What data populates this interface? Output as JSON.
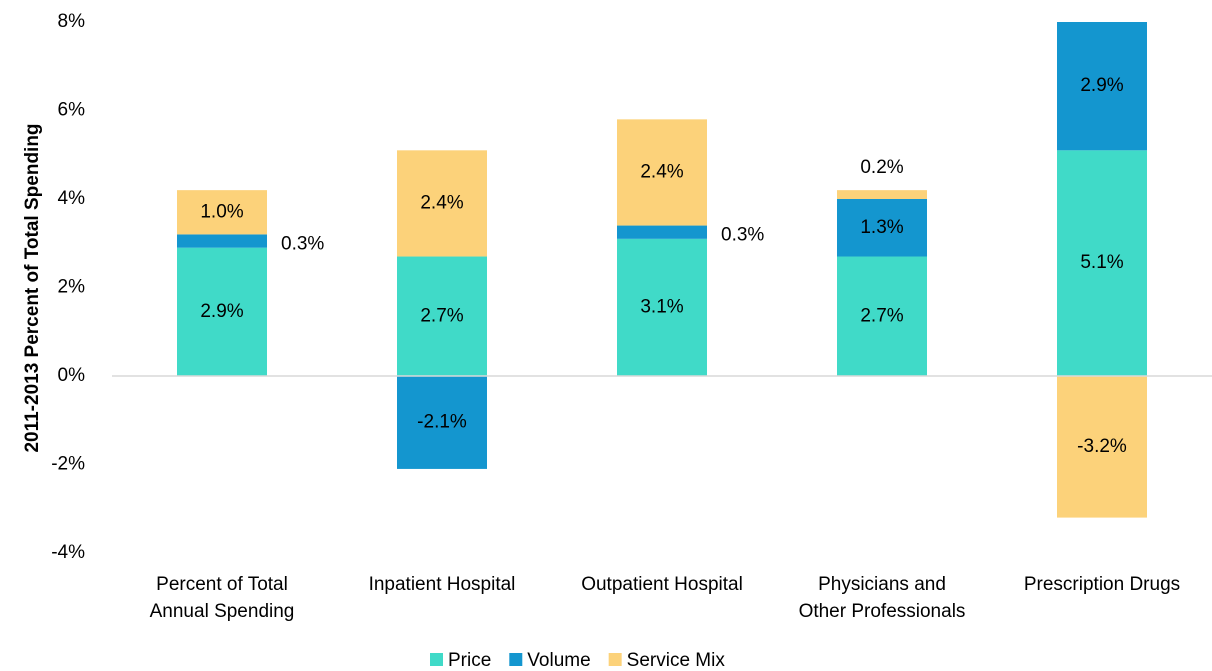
{
  "chart_data": {
    "type": "stacked_bar",
    "y_axis_label": "2011-2013 Percent of Total Spending",
    "categories": [
      "Percent of Total\nAnnual Spending",
      "Inpatient Hospital",
      "Outpatient Hospital",
      "Physicians and\nOther Professionals",
      "Prescription Drugs"
    ],
    "series": [
      {
        "name": "Price",
        "color": "#40dac8",
        "values": [
          2.9,
          2.7,
          3.1,
          2.7,
          5.1
        ],
        "value_labels": [
          "2.9%",
          "2.7%",
          "3.1%",
          "2.7%",
          "5.1%"
        ]
      },
      {
        "name": "Volume",
        "color": "#1496cf",
        "values": [
          0.3,
          -2.1,
          0.3,
          1.3,
          2.9
        ],
        "value_labels": [
          "0.3%",
          "-2.1%",
          "0.3%",
          "1.3%",
          "2.9%"
        ]
      },
      {
        "name": "Service Mix",
        "color": "#fcd27a",
        "values": [
          1.0,
          2.4,
          2.4,
          0.2,
          -3.2
        ],
        "value_labels": [
          "1.0%",
          "2.4%",
          "2.4%",
          "0.2%",
          "-3.2%"
        ]
      }
    ],
    "ylim": [
      -4,
      8
    ],
    "yticks": [
      {
        "value": -4,
        "label": "-4%"
      },
      {
        "value": -2,
        "label": "-2%"
      },
      {
        "value": 0,
        "label": "0%"
      },
      {
        "value": 2,
        "label": "2%"
      },
      {
        "value": 4,
        "label": "4%"
      },
      {
        "value": 6,
        "label": "6%"
      },
      {
        "value": 8,
        "label": "8%"
      }
    ],
    "legend": "bottom"
  }
}
